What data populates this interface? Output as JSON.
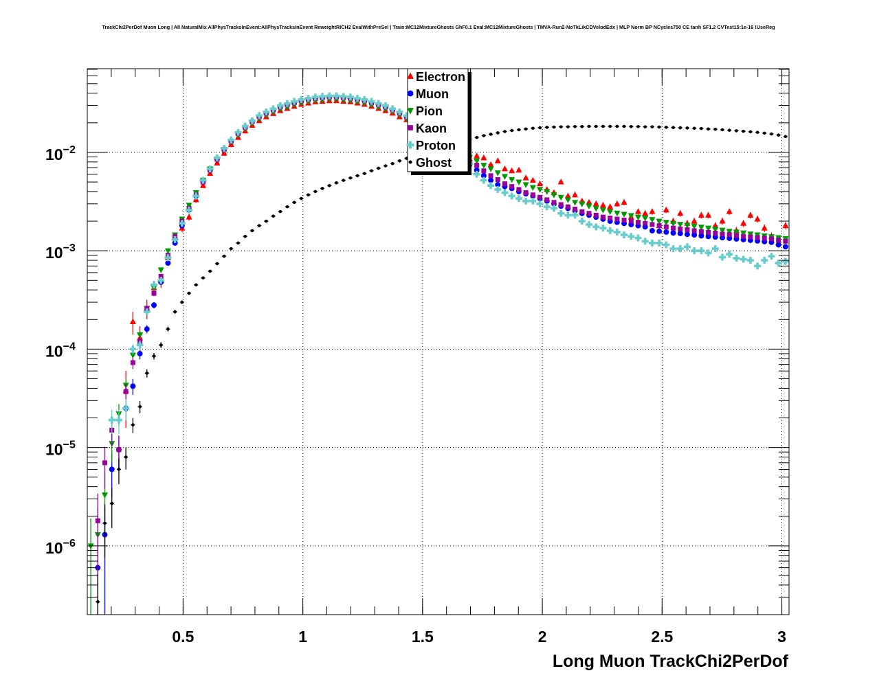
{
  "chart_data": {
    "type": "scatter",
    "title": "TrackChi2PerDof Muon Long | All NaturalMix AllPhysTracksInEvent:AllPhysTracksInEvent ReweightRICH2 EvalWithPreSel | Train:MC12MixtureGhosts GhF0.1 Eval:MC12MixtureGhosts | TMVA-Run2-NoTkLikCDVelodEdx | MLP Norm BP NCycles750 CE tanh SF1.2 CVTest15:1e-16 !UseReg",
    "xlabel": "Long Muon TrackChi2PerDof",
    "ylabel": "",
    "xlim": [
      0.1,
      3.03
    ],
    "ylim": [
      2e-07,
      0.071
    ],
    "yscale": "log",
    "grid": true,
    "legend_position": "top-center",
    "binning": {
      "nbins": 100,
      "xmin": 0.1,
      "xmax": 3.03
    },
    "x_ticks": [
      {
        "value": 0.5,
        "label": "0.5"
      },
      {
        "value": 1,
        "label": "1"
      },
      {
        "value": 1.5,
        "label": "1.5"
      },
      {
        "value": 2,
        "label": "2"
      },
      {
        "value": 2.5,
        "label": "2.5"
      },
      {
        "value": 3,
        "label": "3"
      }
    ],
    "y_ticks": [
      {
        "exp": -2,
        "base": "10",
        "sup": "−2"
      },
      {
        "exp": -3,
        "base": "10",
        "sup": "−3"
      },
      {
        "exp": -4,
        "base": "10",
        "sup": "−4"
      },
      {
        "exp": -5,
        "base": "10",
        "sup": "−5"
      },
      {
        "exp": -6,
        "base": "10",
        "sup": "−6"
      }
    ],
    "series": [
      {
        "name": "Electron",
        "color": "#ff0000",
        "marker": "triangle-up",
        "values": [
          null,
          null,
          null,
          null,
          null,
          3.8e-05,
          0.00019,
          0.00013,
          0.00026,
          0.00042,
          0.0005,
          0.00085,
          0.0014,
          0.0017,
          0.0022,
          0.0033,
          0.0046,
          0.0061,
          0.0078,
          0.0098,
          0.012,
          0.0142,
          0.0165,
          0.0188,
          0.021,
          0.023,
          0.0248,
          0.0266,
          0.028,
          0.0294,
          0.0308,
          0.0317,
          0.0326,
          0.033,
          0.0335,
          0.0335,
          0.033,
          0.0326,
          0.0317,
          0.0308,
          0.0294,
          0.028,
          0.0266,
          0.025,
          0.023,
          0.0215,
          0.0195,
          0.0178,
          0.016,
          0.0142,
          0.0125,
          0.0112,
          0.01,
          0.0092,
          0.0086,
          0.0092,
          0.0088,
          0.0075,
          0.0082,
          0.0068,
          0.0065,
          0.0066,
          0.0055,
          0.0052,
          0.0048,
          0.0042,
          0.0039,
          0.005,
          0.0036,
          0.0037,
          0.0032,
          0.0031,
          0.003,
          0.0029,
          0.0028,
          0.003,
          0.0031,
          0.0022,
          0.0025,
          0.0024,
          0.0025,
          0.0018,
          0.0026,
          0.002,
          0.0024,
          0.0019,
          0.002,
          0.0023,
          0.0023,
          0.0018,
          0.002,
          0.0025,
          0.0016,
          0.0019,
          0.0023,
          0.0021,
          0.0017,
          0.0014,
          0.0012,
          0.0018
        ]
      },
      {
        "name": "Muon",
        "color": "#0000ff",
        "marker": "circle",
        "values": [
          null,
          6e-07,
          1.3e-06,
          6e-06,
          9.5e-06,
          2.5e-05,
          4.2e-05,
          9e-05,
          0.00016,
          0.00028,
          0.00048,
          0.00075,
          0.0012,
          0.0018,
          0.0026,
          0.0036,
          0.005,
          0.0066,
          0.0085,
          0.0107,
          0.013,
          0.0155,
          0.018,
          0.0205,
          0.023,
          0.025,
          0.027,
          0.029,
          0.0305,
          0.032,
          0.0335,
          0.0345,
          0.0355,
          0.036,
          0.0365,
          0.0365,
          0.036,
          0.0355,
          0.0345,
          0.0335,
          0.032,
          0.0305,
          0.029,
          0.027,
          0.025,
          0.023,
          0.021,
          0.019,
          0.017,
          0.015,
          0.013,
          0.0115,
          0.01,
          0.0088,
          0.0076,
          0.0066,
          0.0058,
          0.0052,
          0.0047,
          0.0045,
          0.0043,
          0.004,
          0.0038,
          0.0036,
          0.0034,
          0.0032,
          0.003,
          0.00285,
          0.0027,
          0.00255,
          0.0024,
          0.0023,
          0.0022,
          0.0021,
          0.002,
          0.00195,
          0.0019,
          0.00185,
          0.0018,
          0.00175,
          0.0016,
          0.00158,
          0.00155,
          0.00152,
          0.0015,
          0.00147,
          0.00145,
          0.00142,
          0.0014,
          0.00138,
          0.00136,
          0.00134,
          0.00132,
          0.0013,
          0.00128,
          0.00126,
          0.00124,
          0.00122,
          0.00115,
          0.0011
        ]
      },
      {
        "name": "Pion",
        "color": "#009900",
        "marker": "triangle-down",
        "values": [
          1e-06,
          1.3e-06,
          3.3e-06,
          1.1e-05,
          2.2e-05,
          4.3e-05,
          8.7e-05,
          0.00014,
          0.00026,
          0.00042,
          0.00064,
          0.001,
          0.00145,
          0.0021,
          0.0029,
          0.0039,
          0.0052,
          0.0068,
          0.0086,
          0.0107,
          0.0128,
          0.015,
          0.0174,
          0.0198,
          0.022,
          0.024,
          0.0258,
          0.0276,
          0.029,
          0.0304,
          0.0318,
          0.0328,
          0.0337,
          0.0342,
          0.0347,
          0.0347,
          0.0342,
          0.0337,
          0.0328,
          0.0318,
          0.0304,
          0.029,
          0.0276,
          0.026,
          0.024,
          0.0222,
          0.0204,
          0.0186,
          0.0168,
          0.015,
          0.0133,
          0.012,
          0.0108,
          0.0098,
          0.0089,
          0.0082,
          0.0074,
          0.0068,
          0.0062,
          0.0057,
          0.0053,
          0.005,
          0.0047,
          0.0044,
          0.0042,
          0.004,
          0.0037,
          0.0035,
          0.0033,
          0.0031,
          0.003,
          0.00285,
          0.0027,
          0.0026,
          0.0025,
          0.00242,
          0.00235,
          0.00228,
          0.0022,
          0.00215,
          0.00208,
          0.002,
          0.00195,
          0.0019,
          0.00186,
          0.00182,
          0.00178,
          0.00174,
          0.0017,
          0.00166,
          0.00162,
          0.00158,
          0.00155,
          0.00152,
          0.00148,
          0.00145,
          0.00142,
          0.00139,
          0.00136,
          0.00133
        ]
      },
      {
        "name": "Kaon",
        "color": "#990099",
        "marker": "square",
        "values": [
          null,
          1.8e-06,
          7e-06,
          1.5e-05,
          9.5e-06,
          3.7e-05,
          7.3e-05,
          0.00012,
          0.00026,
          0.00037,
          0.00055,
          0.0009,
          0.0014,
          0.002,
          0.0027,
          0.0037,
          0.005,
          0.0066,
          0.0085,
          0.0107,
          0.013,
          0.0155,
          0.018,
          0.0205,
          0.023,
          0.025,
          0.027,
          0.029,
          0.0305,
          0.032,
          0.0335,
          0.0345,
          0.0355,
          0.036,
          0.0365,
          0.0365,
          0.036,
          0.0355,
          0.0345,
          0.0335,
          0.032,
          0.0305,
          0.029,
          0.027,
          0.025,
          0.023,
          0.021,
          0.019,
          0.017,
          0.015,
          0.013,
          0.0115,
          0.01,
          0.0088,
          0.0076,
          0.0074,
          0.0065,
          0.0058,
          0.0053,
          0.0048,
          0.0045,
          0.0042,
          0.0039,
          0.0037,
          0.0035,
          0.0033,
          0.0031,
          0.00295,
          0.0028,
          0.00265,
          0.0025,
          0.0024,
          0.0023,
          0.0022,
          0.00215,
          0.0021,
          0.00205,
          0.002,
          0.00195,
          0.0019,
          0.00185,
          0.0018,
          0.00175,
          0.0017,
          0.00167,
          0.00164,
          0.0016,
          0.00157,
          0.00154,
          0.00151,
          0.00148,
          0.00146,
          0.00143,
          0.0014,
          0.00138,
          0.00136,
          0.00134,
          0.00132,
          0.00128,
          0.00125
        ]
      },
      {
        "name": "Proton",
        "color": "#66cccc",
        "marker": "cross",
        "values": [
          null,
          null,
          null,
          1.9e-05,
          1.9e-05,
          2.5e-05,
          0.0001,
          0.00011,
          0.00024,
          0.00045,
          0.0005,
          0.00085,
          0.0013,
          0.0019,
          0.0026,
          0.0036,
          0.0052,
          0.0068,
          0.0088,
          0.011,
          0.0134,
          0.016,
          0.0185,
          0.021,
          0.0237,
          0.0258,
          0.0278,
          0.0299,
          0.0314,
          0.033,
          0.0345,
          0.0355,
          0.0366,
          0.0371,
          0.0376,
          0.0376,
          0.0371,
          0.0366,
          0.0355,
          0.0345,
          0.033,
          0.0314,
          0.0299,
          0.0278,
          0.0258,
          0.0237,
          0.0216,
          0.0196,
          0.0175,
          0.0155,
          0.0134,
          0.0118,
          0.0103,
          0.009,
          0.0077,
          0.006,
          0.0052,
          0.0046,
          0.0042,
          0.0039,
          0.0036,
          0.0034,
          0.0032,
          0.0032,
          0.003,
          0.0028,
          0.0027,
          0.0024,
          0.0023,
          0.0023,
          0.002,
          0.00185,
          0.00175,
          0.0017,
          0.0016,
          0.00155,
          0.00145,
          0.0014,
          0.00135,
          0.00125,
          0.0012,
          0.0012,
          0.00115,
          0.00105,
          0.00105,
          0.0011,
          0.001,
          0.001,
          0.00095,
          0.00105,
          0.00086,
          0.00092,
          0.00084,
          0.00082,
          0.0008,
          0.0007,
          0.0008,
          0.00088,
          0.00075,
          0.00078
        ]
      },
      {
        "name": "Ghost",
        "color": "#000000",
        "marker": "dot",
        "values": [
          null,
          2.7e-07,
          1.7e-06,
          2.7e-06,
          6e-06,
          8e-06,
          1.7e-05,
          2.6e-05,
          5.7e-05,
          8.5e-05,
          0.00011,
          0.00016,
          0.00024,
          0.0003,
          0.00037,
          0.00045,
          0.00053,
          0.00062,
          0.00074,
          0.00088,
          0.00105,
          0.0012,
          0.0014,
          0.0016,
          0.0018,
          0.002,
          0.00225,
          0.0025,
          0.0028,
          0.0031,
          0.0034,
          0.0037,
          0.004,
          0.0043,
          0.0046,
          0.0049,
          0.0052,
          0.0055,
          0.0058,
          0.0061,
          0.0065,
          0.0069,
          0.0073,
          0.0077,
          0.0082,
          0.0087,
          0.0092,
          0.0097,
          0.0102,
          0.0107,
          0.0112,
          0.0118,
          0.0124,
          0.013,
          0.0136,
          0.0142,
          0.0148,
          0.0153,
          0.0158,
          0.0163,
          0.0167,
          0.017,
          0.0173,
          0.0176,
          0.0178,
          0.018,
          0.0181,
          0.0182,
          0.0182,
          0.0183,
          0.0183,
          0.0184,
          0.0184,
          0.0184,
          0.0184,
          0.0184,
          0.0184,
          0.0183,
          0.0183,
          0.0182,
          0.0182,
          0.0181,
          0.018,
          0.0179,
          0.0178,
          0.0177,
          0.0176,
          0.0175,
          0.0173,
          0.0172,
          0.017,
          0.0168,
          0.0166,
          0.0164,
          0.0162,
          0.016,
          0.0157,
          0.0154,
          0.015,
          0.0145
        ]
      }
    ]
  }
}
